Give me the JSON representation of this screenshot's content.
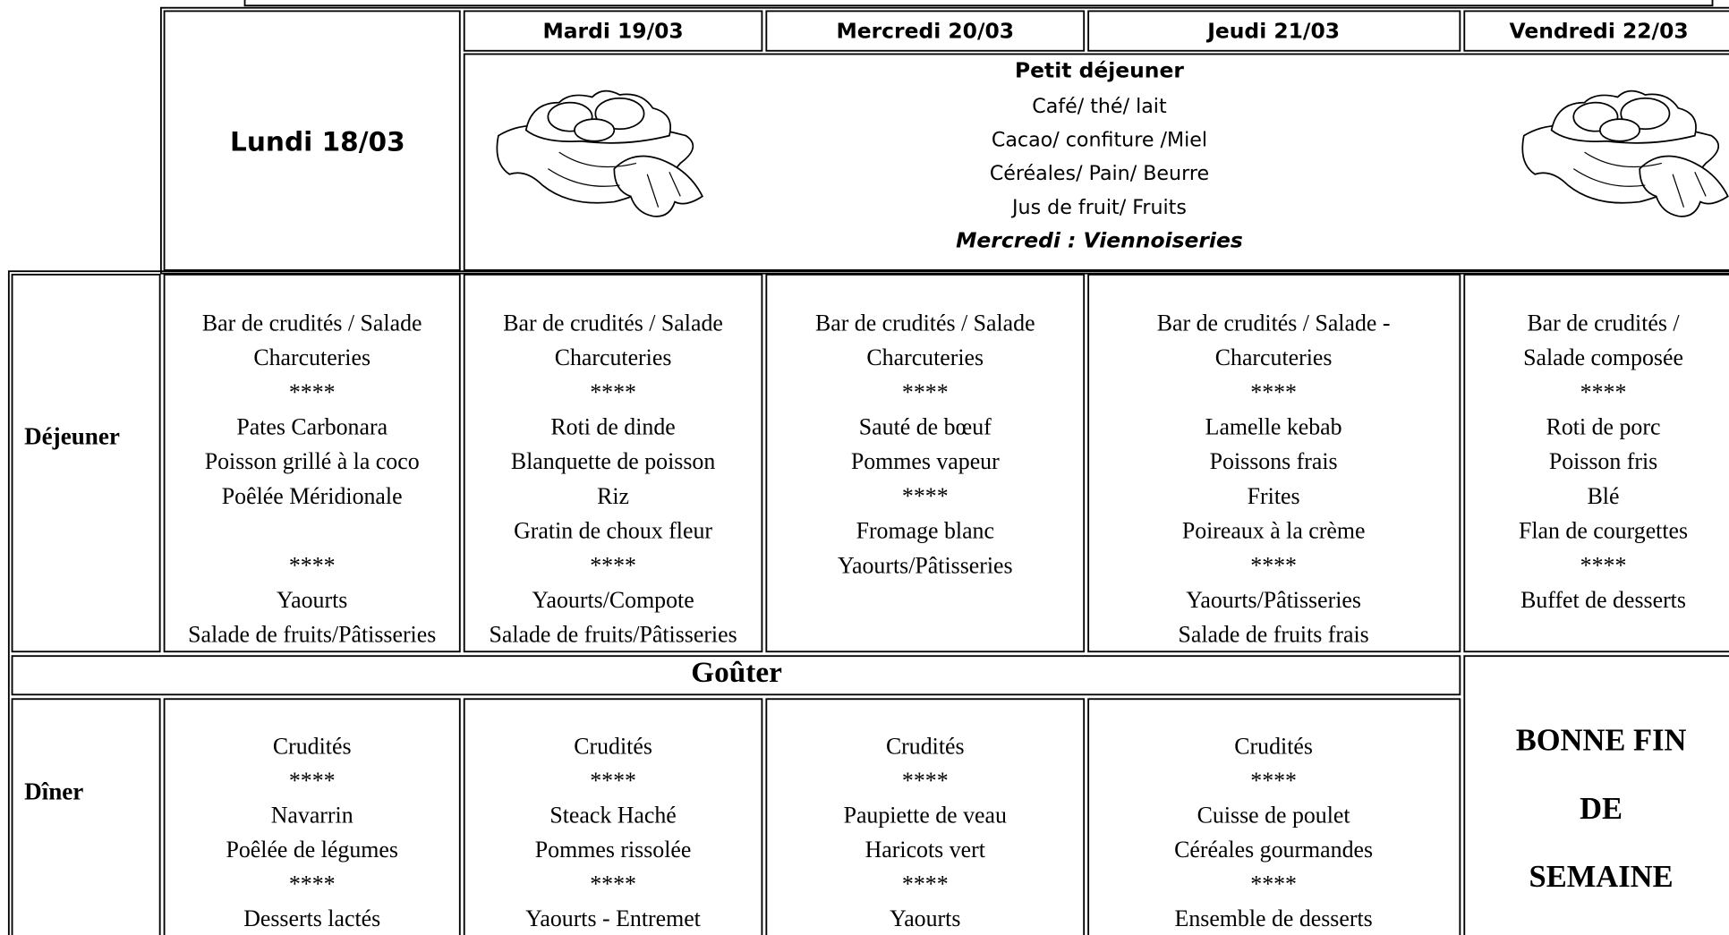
{
  "header": {
    "corner_day": "Lundi 18/03",
    "days": [
      "Mardi 19/03",
      "Mercredi 20/03",
      "Jeudi 21/03",
      "Vendredi 22/03"
    ]
  },
  "breakfast": {
    "title": "Petit déjeuner",
    "items": [
      "Café/ thé/ lait",
      "Cacao/ confiture /Miel",
      "Céréales/ Pain/ Beurre",
      "Jus de fruit/ Fruits"
    ],
    "note": "Mercredi : Viennoiseries"
  },
  "lunch": {
    "label": "Déjeuner",
    "columns": [
      [
        "Bar de crudités / Salade",
        "Charcuteries",
        "****",
        "Pates Carbonara",
        "Poisson grillé à la coco",
        "Poêlée Méridionale",
        "****",
        "Yaourts",
        "Salade de fruits/Pâtisseries"
      ],
      [
        "Bar de crudités / Salade",
        "Charcuteries",
        "****",
        "Roti de dinde",
        "Blanquette de poisson",
        "Riz",
        "Gratin de choux fleur",
        "****",
        "Yaourts/Compote",
        "Salade de fruits/Pâtisseries"
      ],
      [
        "Bar de crudités / Salade",
        "Charcuteries",
        "****",
        "Sauté de bœuf",
        "Pommes vapeur",
        "****",
        "Fromage blanc",
        "Yaourts/Pâtisseries"
      ],
      [
        "Bar de crudités / Salade -",
        "Charcuteries",
        "****",
        "Lamelle kebab",
        "Poissons frais",
        "Frites",
        "Poireaux à la crème",
        "****",
        "Yaourts/Pâtisseries",
        "Salade de fruits frais"
      ],
      [
        "Bar de crudités /",
        "Salade composée",
        "****",
        "Roti de porc",
        "Poisson fris",
        "Blé",
        "Flan de courgettes",
        "****",
        "Buffet de desserts"
      ]
    ]
  },
  "snack": {
    "label": "Goûter"
  },
  "dinner": {
    "label": "Dîner",
    "columns": [
      [
        "Crudités",
        "****",
        "Navarrin",
        "Poêlée de légumes",
        "****",
        "Desserts lactés"
      ],
      [
        "Crudités",
        "****",
        "Steack Haché",
        "Pommes rissolée",
        "****",
        "Yaourts - Entremet"
      ],
      [
        "Crudités",
        "****",
        "Paupiette de veau",
        "Haricots vert",
        "****",
        "Yaourts"
      ],
      [
        "Crudités",
        "****",
        "Cuisse de poulet",
        "Céréales gourmandes",
        "****",
        "Ensemble de desserts"
      ]
    ]
  },
  "weekend": [
    "BONNE FIN",
    "DE",
    "SEMAINE"
  ]
}
